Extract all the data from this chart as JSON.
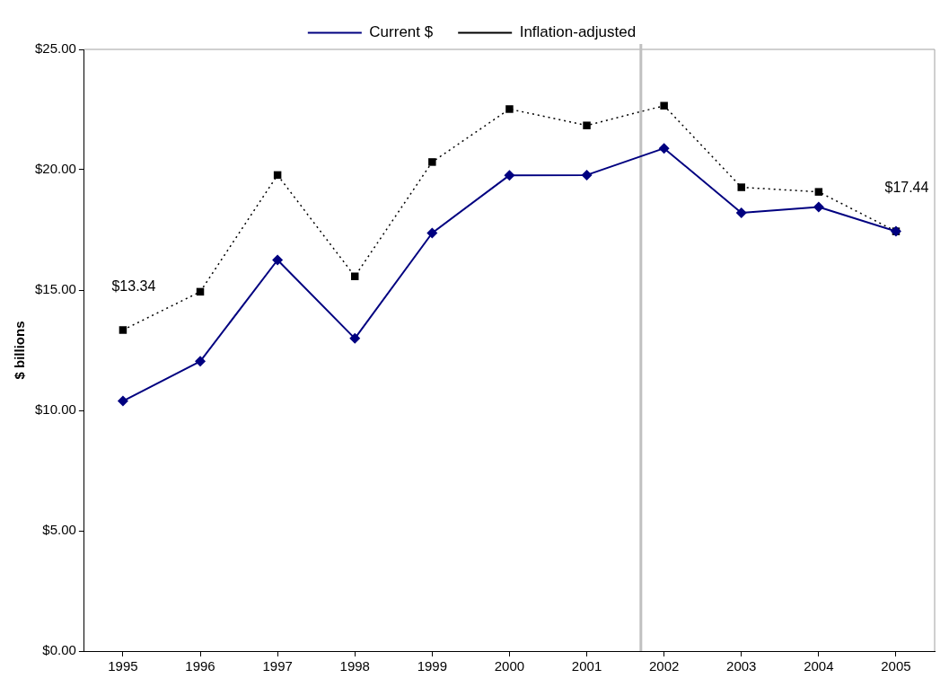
{
  "chart_data": {
    "type": "line",
    "ylabel": "$ billions",
    "x": [
      1995,
      1996,
      1997,
      1998,
      1999,
      2000,
      2001,
      2002,
      2003,
      2004,
      2005
    ],
    "xlim": [
      1994.5,
      2005.5
    ],
    "xticks": [
      1995,
      1996,
      1997,
      1998,
      1999,
      2000,
      2001,
      2002,
      2003,
      2004,
      2005
    ],
    "ylim": [
      0,
      25
    ],
    "yticks": [
      {
        "value": 0,
        "label": "$0.00"
      },
      {
        "value": 5,
        "label": "$5.00"
      },
      {
        "value": 10,
        "label": "$10.00"
      },
      {
        "value": 15,
        "label": "$15.00"
      },
      {
        "value": 20,
        "label": "$20.00"
      },
      {
        "value": 25,
        "label": "$25.00"
      }
    ],
    "series": [
      {
        "name": "Current $",
        "color": "#000080",
        "marker": "diamond",
        "line_style": "solid",
        "values": [
          10.39,
          12.04,
          16.25,
          12.99,
          17.37,
          19.77,
          19.78,
          20.89,
          18.21,
          18.45,
          17.44
        ]
      },
      {
        "name": "Inflation-adjusted",
        "color": "#000000",
        "marker": "square",
        "line_style": "dotted",
        "values": [
          13.34,
          14.93,
          19.78,
          15.57,
          20.32,
          22.52,
          21.84,
          22.66,
          19.27,
          19.08,
          17.44
        ],
        "value_labels": [
          "$13.34",
          null,
          null,
          null,
          null,
          null,
          null,
          null,
          null,
          null,
          "$17.44"
        ]
      }
    ],
    "ref_lines": [
      {
        "axis": "x",
        "value": 2001.7,
        "color": "#c0c0c0"
      }
    ],
    "grid": false,
    "legend": "top"
  }
}
